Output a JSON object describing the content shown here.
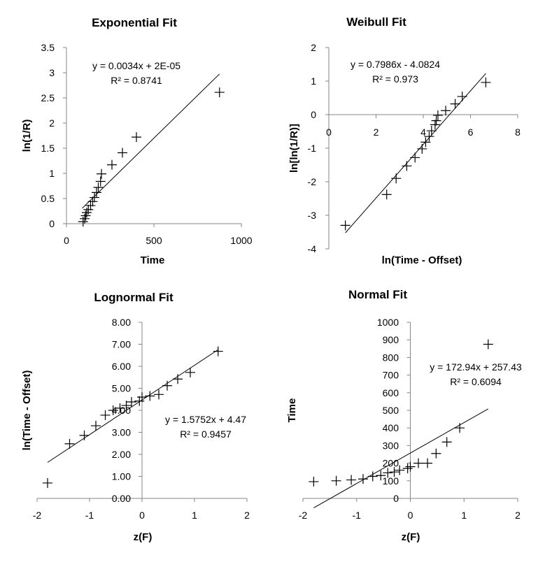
{
  "chart_data": [
    {
      "type": "scatter",
      "title": "Exponential Fit",
      "xlabel": "Time",
      "ylabel": "ln(1/R)",
      "xlim": [
        0,
        1000
      ],
      "ylim": [
        0,
        3.5
      ],
      "xticks": [
        "0",
        "500",
        "1000"
      ],
      "yticks": [
        "0",
        "0.5",
        "1",
        "1.5",
        "2",
        "2.5",
        "3",
        "3.5"
      ],
      "x": [
        95,
        104,
        110,
        116,
        125,
        138,
        150,
        160,
        172,
        182,
        195,
        200,
        260,
        320,
        400,
        875
      ],
      "y": [
        0.04,
        0.1,
        0.16,
        0.22,
        0.28,
        0.36,
        0.44,
        0.52,
        0.62,
        0.72,
        0.84,
        0.99,
        1.17,
        1.41,
        1.72,
        2.61
      ],
      "trendline": {
        "slope": 0.0034,
        "intercept": 2e-05,
        "x_range": [
          90,
          875
        ]
      },
      "equation": "y = 0.0034x + 2E-05",
      "r2": "R² = 0.8741",
      "grid": false,
      "legend": "none"
    },
    {
      "type": "scatter",
      "title": "Weibull Fit",
      "xlabel": "ln(Time - Offset)",
      "ylabel": "ln[ln(1/R)]",
      "xlim": [
        0,
        8
      ],
      "ylim": [
        -4,
        2
      ],
      "xticks": [
        "0",
        "2",
        "4",
        "6",
        "8"
      ],
      "yticks": [
        "-4",
        "-3",
        "-2",
        "-1",
        "0",
        "1",
        "2"
      ],
      "x": [
        0.7,
        2.45,
        2.85,
        3.3,
        3.65,
        3.95,
        4.1,
        4.25,
        4.35,
        4.5,
        4.55,
        4.62,
        4.95,
        5.35,
        5.65,
        6.65
      ],
      "y": [
        -3.3,
        -2.38,
        -1.9,
        -1.53,
        -1.28,
        -1.02,
        -0.82,
        -0.65,
        -0.48,
        -0.3,
        -0.18,
        -0.02,
        0.12,
        0.32,
        0.54,
        0.96
      ],
      "trendline": {
        "slope": 0.7986,
        "intercept": -4.0824,
        "x_range": [
          0.7,
          6.65
        ]
      },
      "equation": "y = 0.7986x - 4.0824",
      "r2": "R² = 0.973",
      "grid": false,
      "legend": "none"
    },
    {
      "type": "scatter",
      "title": "Lognormal Fit",
      "xlabel": "z(F)",
      "ylabel": "ln(Time - Offset)",
      "xlim": [
        -2,
        2
      ],
      "ylim": [
        0,
        8
      ],
      "xticks": [
        "-2",
        "-1",
        "0",
        "1",
        "2"
      ],
      "yticks": [
        "0.00",
        "1.00",
        "2.00",
        "3.00",
        "4.00",
        "5.00",
        "6.00",
        "7.00",
        "8.00"
      ],
      "x": [
        -1.8,
        -1.38,
        -1.1,
        -0.88,
        -0.7,
        -0.55,
        -0.42,
        -0.3,
        -0.2,
        -0.05,
        0.0,
        0.15,
        0.32,
        0.48,
        0.68,
        0.92,
        1.45
      ],
      "y": [
        0.7,
        2.48,
        2.86,
        3.3,
        3.78,
        4.0,
        4.1,
        4.22,
        4.38,
        4.42,
        4.6,
        4.65,
        4.72,
        5.12,
        5.42,
        5.72,
        6.68
      ],
      "trendline": {
        "slope": 1.5752,
        "intercept": 4.47,
        "x_range": [
          -1.8,
          1.45
        ]
      },
      "equation": "y = 1.5752x + 4.47",
      "r2": "R² = 0.9457",
      "grid": false,
      "legend": "none"
    },
    {
      "type": "scatter",
      "title": "Normal Fit",
      "xlabel": "z(F)",
      "ylabel": "Time",
      "xlim": [
        -2,
        2
      ],
      "ylim": [
        0,
        1000
      ],
      "xticks": [
        "-2",
        "-1",
        "0",
        "1",
        "2"
      ],
      "yticks": [
        "0",
        "100",
        "200",
        "300",
        "400",
        "500",
        "600",
        "700",
        "800",
        "900",
        "1000"
      ],
      "x": [
        -1.8,
        -1.38,
        -1.1,
        -0.88,
        -0.7,
        -0.55,
        -0.42,
        -0.3,
        -0.2,
        -0.05,
        0.0,
        0.15,
        0.32,
        0.48,
        0.68,
        0.92,
        1.45
      ],
      "y": [
        95,
        100,
        105,
        110,
        125,
        130,
        145,
        150,
        160,
        170,
        180,
        200,
        200,
        255,
        320,
        400,
        875
      ],
      "trendline": {
        "slope": 172.94,
        "intercept": 257.43,
        "x_range": [
          -1.8,
          1.45
        ]
      },
      "equation": "y = 172.94x + 257.43",
      "r2": "R² = 0.6094",
      "grid": false,
      "legend": "none"
    }
  ]
}
